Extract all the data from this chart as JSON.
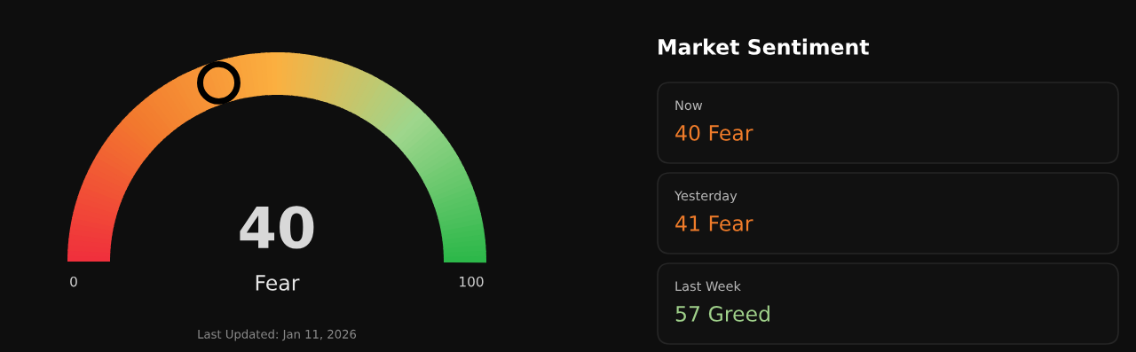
{
  "chart_data": [
    {
      "type": "other",
      "values": [
        40
      ],
      "value_labels": [
        "40"
      ],
      "categories": [
        "Fear"
      ],
      "annotations": [
        "0",
        "100",
        "Last Updated: Jan 11, 2026"
      ]
    },
    {
      "type": "other",
      "title": "Market Sentiment",
      "categories": [
        "Now",
        "Yesterday",
        "Last Week"
      ],
      "value_labels": [
        "40 Fear",
        "41 Fear",
        "57 Greed"
      ],
      "colors": [
        "#f07c2a",
        "#f07c2a",
        "#9fd08a"
      ]
    }
  ]
}
